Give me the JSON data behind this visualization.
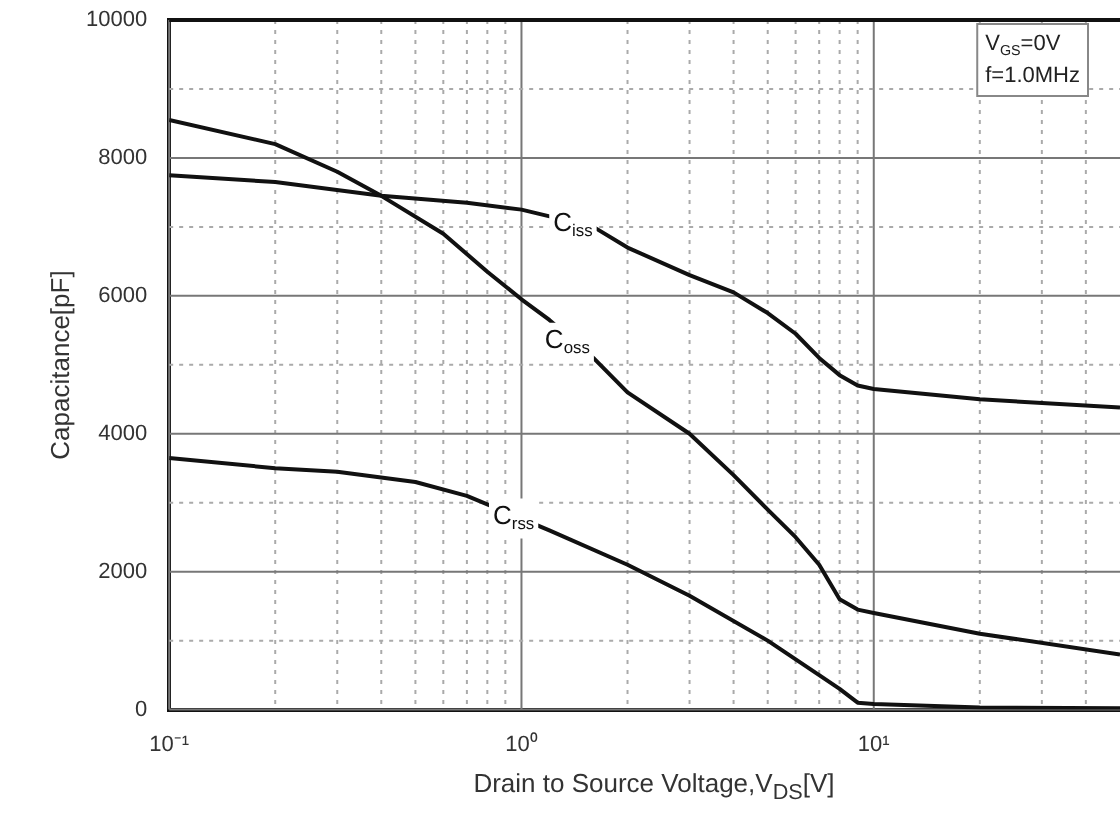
{
  "chart_data": {
    "type": "line",
    "xlabel": "Drain to Source Voltage,V$_{DS}$[V]",
    "ylabel": "Capacitance[pF]",
    "log": "x",
    "grid": true,
    "legend": false,
    "marker": "none",
    "line_style": "solid",
    "xlim": [
      0.1,
      50
    ],
    "xticks": [
      {
        "value": 0.1,
        "label": "10⁻¹"
      },
      {
        "value": 0.2,
        "label": null
      },
      {
        "value": 0.3,
        "label": null
      },
      {
        "value": 0.4,
        "label": null
      },
      {
        "value": 0.5,
        "label": null
      },
      {
        "value": 0.6,
        "label": null
      },
      {
        "value": 0.7,
        "label": null
      },
      {
        "value": 0.8,
        "label": null
      },
      {
        "value": 0.9,
        "label": null
      },
      {
        "value": 1,
        "label": "10⁰"
      },
      {
        "value": 2,
        "label": null
      },
      {
        "value": 3,
        "label": null
      },
      {
        "value": 4,
        "label": null
      },
      {
        "value": 5,
        "label": null
      },
      {
        "value": 6,
        "label": null
      },
      {
        "value": 7,
        "label": null
      },
      {
        "value": 8,
        "label": null
      },
      {
        "value": 9,
        "label": null
      },
      {
        "value": 10,
        "label": "10¹"
      },
      {
        "value": 20,
        "label": null
      },
      {
        "value": 30,
        "label": null
      },
      {
        "value": 40,
        "label": null
      }
    ],
    "ylim": [
      0,
      10000
    ],
    "yticks": [
      0,
      {
        "value": 1000,
        "label": null
      },
      2000,
      {
        "value": 3000,
        "label": null
      },
      4000,
      {
        "value": 5000,
        "label": null
      },
      6000,
      {
        "value": 7000,
        "label": null
      },
      8000,
      {
        "value": 9000,
        "label": null
      },
      10000
    ],
    "series": [
      {
        "color": "#111111",
        "x": [
          0.1,
          0.2,
          0.4,
          0.7,
          1,
          1.6,
          2,
          3,
          4,
          5,
          6,
          7,
          8,
          9,
          10,
          20,
          50
        ],
        "values": [
          7750,
          7650,
          7450,
          7350,
          7250,
          7000,
          6700,
          6300,
          6050,
          5750,
          5450,
          5100,
          4850,
          4700,
          4650,
          4500,
          4380
        ]
      },
      {
        "color": "#111111",
        "x": [
          0.1,
          0.2,
          0.3,
          0.4,
          0.6,
          0.8,
          1,
          1.2,
          1.6,
          2,
          3,
          4,
          5,
          6,
          7,
          8,
          9,
          10,
          20,
          50
        ],
        "values": [
          8550,
          8200,
          7800,
          7450,
          6900,
          6350,
          5950,
          5650,
          5100,
          4600,
          4000,
          3400,
          2900,
          2500,
          2100,
          1600,
          1450,
          1400,
          1100,
          800
        ]
      },
      {
        "color": "#111111",
        "x": [
          0.1,
          0.2,
          0.3,
          0.5,
          0.7,
          1.2,
          2,
          3,
          5,
          7,
          8,
          9,
          10,
          20,
          50
        ],
        "values": [
          3650,
          3500,
          3450,
          3300,
          3100,
          2600,
          2100,
          1650,
          1000,
          500,
          300,
          100,
          80,
          30,
          20
        ]
      }
    ],
    "annotations": [
      {
        "text": "C$_{iss}$",
        "x": 1.4,
        "y": 7050
      },
      {
        "text": "C$_{oss}$",
        "x": 1.35,
        "y": 5350
      },
      {
        "text": "C$_{rss}$",
        "x": 0.95,
        "y": 2800
      },
      "V$_{GS}$=0V",
      "f=1.0MHz"
    ]
  }
}
